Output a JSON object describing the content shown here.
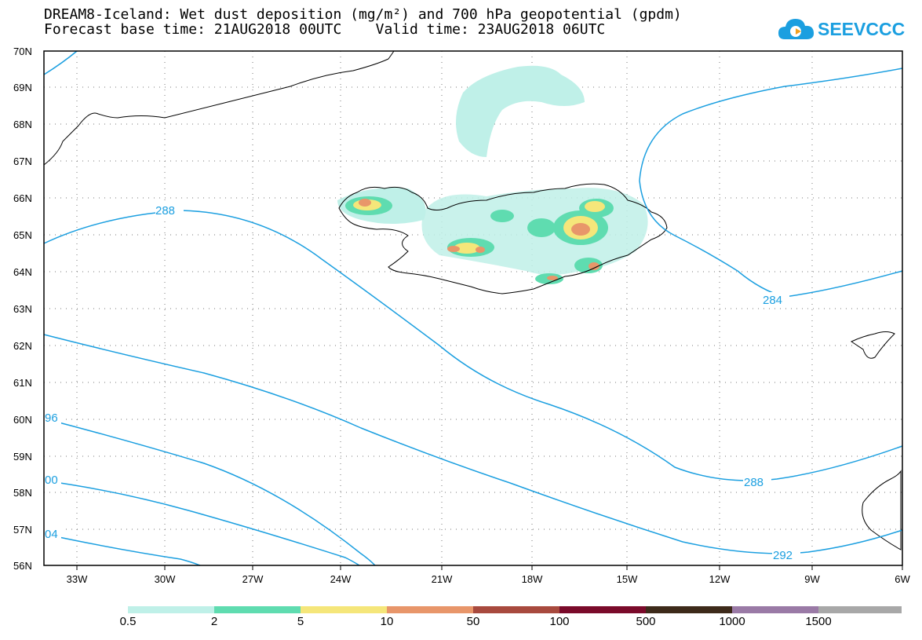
{
  "header": {
    "title_line1": "DREAM8-Iceland: Wet dust deposition (mg/m²) and 700 hPa geopotential (gpdm)",
    "title_line2": "Forecast base time: 21AUG2018 00UTC    Valid time: 23AUG2018 06UTC"
  },
  "logo": {
    "text": "SEEVCCC",
    "icon": "cloud-logo-icon"
  },
  "map": {
    "lat_labels": [
      "70N",
      "69N",
      "68N",
      "67N",
      "66N",
      "65N",
      "64N",
      "63N",
      "62N",
      "61N",
      "60N",
      "59N",
      "58N",
      "57N",
      "56N"
    ],
    "lon_labels": [
      "33W",
      "30W",
      "27W",
      "24W",
      "21W",
      "18W",
      "15W",
      "12W",
      "9W",
      "6W"
    ],
    "contour_labels": [
      "288",
      "284",
      "288",
      "292",
      "96",
      "00",
      "04"
    ],
    "contour_color": "#1b9fe0"
  },
  "colorbar": {
    "labels": [
      "0.5",
      "2",
      "5",
      "10",
      "50",
      "100",
      "500",
      "1000",
      "1500"
    ],
    "colors": [
      "#bff0e8",
      "#5fdcb0",
      "#f5e67a",
      "#e8966a",
      "#a84a3e",
      "#7a0a2a",
      "#3d2a1a",
      "#9a7aa6",
      "#a8a8a8"
    ]
  }
}
